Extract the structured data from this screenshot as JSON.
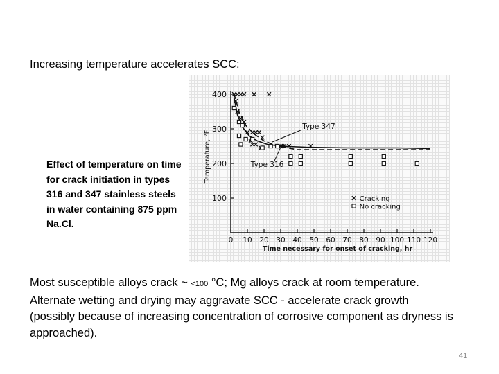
{
  "slide": {
    "heading": "Increasing temperature accelerates SCC:",
    "caption": "Effect of temperature on time for crack initiation in types 316 and 347 stainless steels in water containing 875 ppm Na.Cl.",
    "paragraph1": {
      "before": "Most susceptible alloys crack ~ ",
      "small": "<100",
      "after": " °C;  Mg alloys crack at room temperature."
    },
    "paragraph2": "Alternate wetting and drying may aggravate SCC - accelerate crack growth (possibly because of increasing concentration of corrosive component as dryness is approached).",
    "page_number": "41"
  },
  "chart_data": {
    "type": "scatter",
    "title": "",
    "xlabel": "Time necessary for onset of cracking, hr",
    "ylabel": "Temperature, °F",
    "xlim": [
      0,
      120
    ],
    "ylim": [
      0,
      400
    ],
    "x_ticks": [
      0,
      10,
      20,
      30,
      40,
      50,
      60,
      70,
      80,
      90,
      100,
      110,
      120
    ],
    "y_ticks": [
      100,
      200,
      300,
      400
    ],
    "grid": false,
    "legend_position": "bottom-right",
    "legend": [
      {
        "symbol": "×",
        "label": "Cracking"
      },
      {
        "symbol": "□",
        "label": "No cracking"
      }
    ],
    "annotations": [
      "Type 347",
      "Type 316"
    ],
    "series": [
      {
        "name": "Cracking",
        "marker": "x",
        "points": [
          [
            2,
            400
          ],
          [
            4,
            400
          ],
          [
            6,
            400
          ],
          [
            8,
            400
          ],
          [
            14,
            400
          ],
          [
            23,
            400
          ],
          [
            3,
            380
          ],
          [
            4,
            350
          ],
          [
            6,
            330
          ],
          [
            8,
            320
          ],
          [
            10,
            290
          ],
          [
            13,
            290
          ],
          [
            15,
            290
          ],
          [
            17,
            290
          ],
          [
            19,
            275
          ],
          [
            12,
            265
          ],
          [
            13,
            255
          ],
          [
            15,
            255
          ],
          [
            18,
            245
          ],
          [
            30,
            250
          ],
          [
            31,
            250
          ],
          [
            32,
            250
          ],
          [
            35,
            250
          ],
          [
            48,
            250
          ]
        ]
      },
      {
        "name": "No cracking",
        "marker": "square",
        "points": [
          [
            2,
            360
          ],
          [
            5,
            320
          ],
          [
            7,
            310
          ],
          [
            5,
            280
          ],
          [
            9,
            270
          ],
          [
            13,
            270
          ],
          [
            6,
            255
          ],
          [
            19,
            245
          ],
          [
            24,
            250
          ],
          [
            28,
            250
          ],
          [
            36,
            220
          ],
          [
            42,
            220
          ],
          [
            36,
            200
          ],
          [
            42,
            200
          ],
          [
            72,
            220
          ],
          [
            72,
            200
          ],
          [
            92,
            220
          ],
          [
            92,
            200
          ],
          [
            112,
            200
          ]
        ]
      }
    ],
    "curves": [
      {
        "name": "Type 347",
        "style": "dashed",
        "points": [
          [
            2,
            400
          ],
          [
            5,
            350
          ],
          [
            9,
            310
          ],
          [
            14,
            285
          ],
          [
            20,
            265
          ],
          [
            28,
            250
          ],
          [
            40,
            240
          ],
          [
            60,
            240
          ],
          [
            90,
            240
          ],
          [
            120,
            240
          ]
        ]
      },
      {
        "name": "Type 316",
        "style": "solid",
        "points": [
          [
            2,
            390
          ],
          [
            4,
            340
          ],
          [
            7,
            305
          ],
          [
            11,
            280
          ],
          [
            16,
            265
          ],
          [
            22,
            255
          ],
          [
            30,
            250
          ],
          [
            45,
            247
          ],
          [
            70,
            245
          ],
          [
            100,
            245
          ],
          [
            120,
            243
          ]
        ]
      }
    ]
  }
}
